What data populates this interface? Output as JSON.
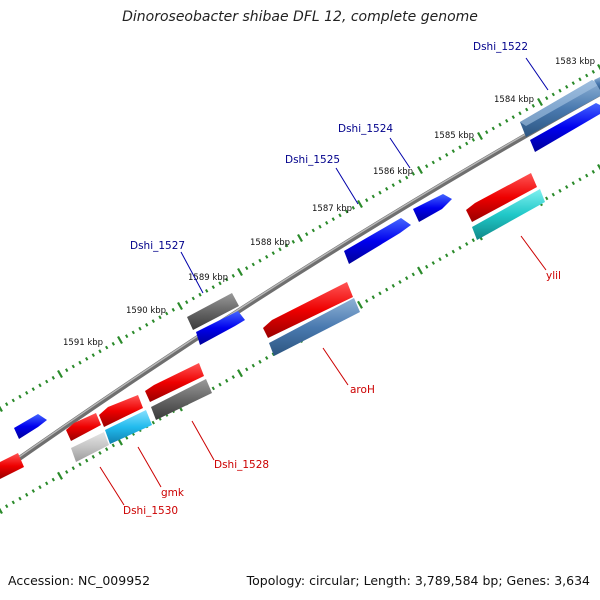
{
  "title": "Dinoroseobacter shibae DFL 12, complete genome",
  "footer": {
    "accession": "Accession: NC_009952",
    "summary": "Topology: circular; Length: 3,789,584 bp; Genes: 3,634"
  },
  "colors": {
    "background": "#ffffff",
    "backbone": "#8a8a8a",
    "ticks": "#2a8a2a",
    "label_blue": "#00008b",
    "label_red": "#cc0000"
  },
  "scale_labels": [
    "1583 kbp",
    "1584 kbp",
    "1585 kbp",
    "1586 kbp",
    "1587 kbp",
    "1588 kbp",
    "1589 kbp",
    "1590 kbp",
    "1591 kbp"
  ],
  "gene_labels": [
    "Dshi_1522",
    "Dshi_1524",
    "Dshi_1525",
    "Dshi_1527",
    "ylil",
    "aroH",
    "Dshi_1528",
    "gmk",
    "Dshi_1530"
  ]
}
